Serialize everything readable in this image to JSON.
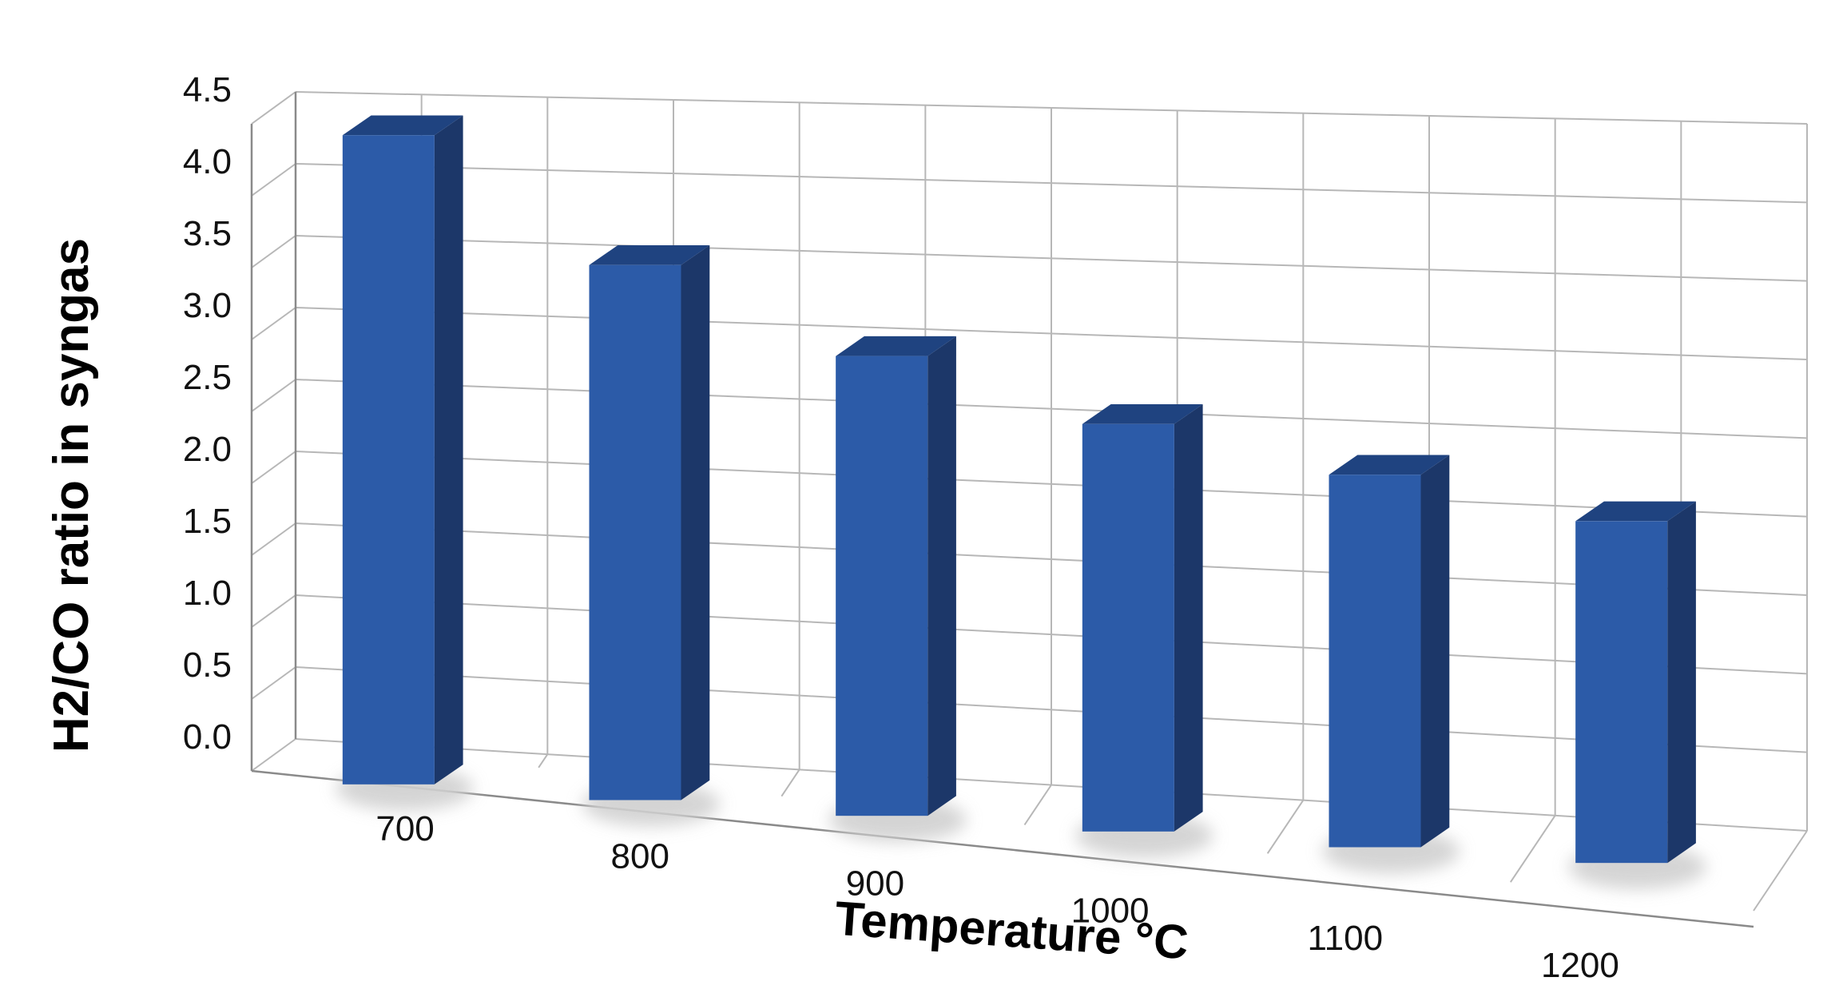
{
  "chart_data": {
    "type": "bar",
    "style": "3d-column",
    "categories": [
      "700",
      "800",
      "900",
      "1000",
      "1100",
      "1200"
    ],
    "values": [
      4.35,
      3.45,
      2.82,
      2.35,
      2.0,
      1.68
    ],
    "xlabel": "Temperature °C",
    "ylabel": "H2/CO ratio in syngas",
    "ylim": [
      0,
      4.5
    ],
    "yticks": [
      "0.0",
      "0.5",
      "1.0",
      "1.5",
      "2.0",
      "2.5",
      "3.0",
      "3.5",
      "4.0",
      "4.5"
    ],
    "grid": true,
    "legend": "none",
    "colors": {
      "front": "#2c5ba8",
      "side": "#1c3769",
      "top": "#1f4380",
      "shadow": "#d0d0d0"
    }
  }
}
